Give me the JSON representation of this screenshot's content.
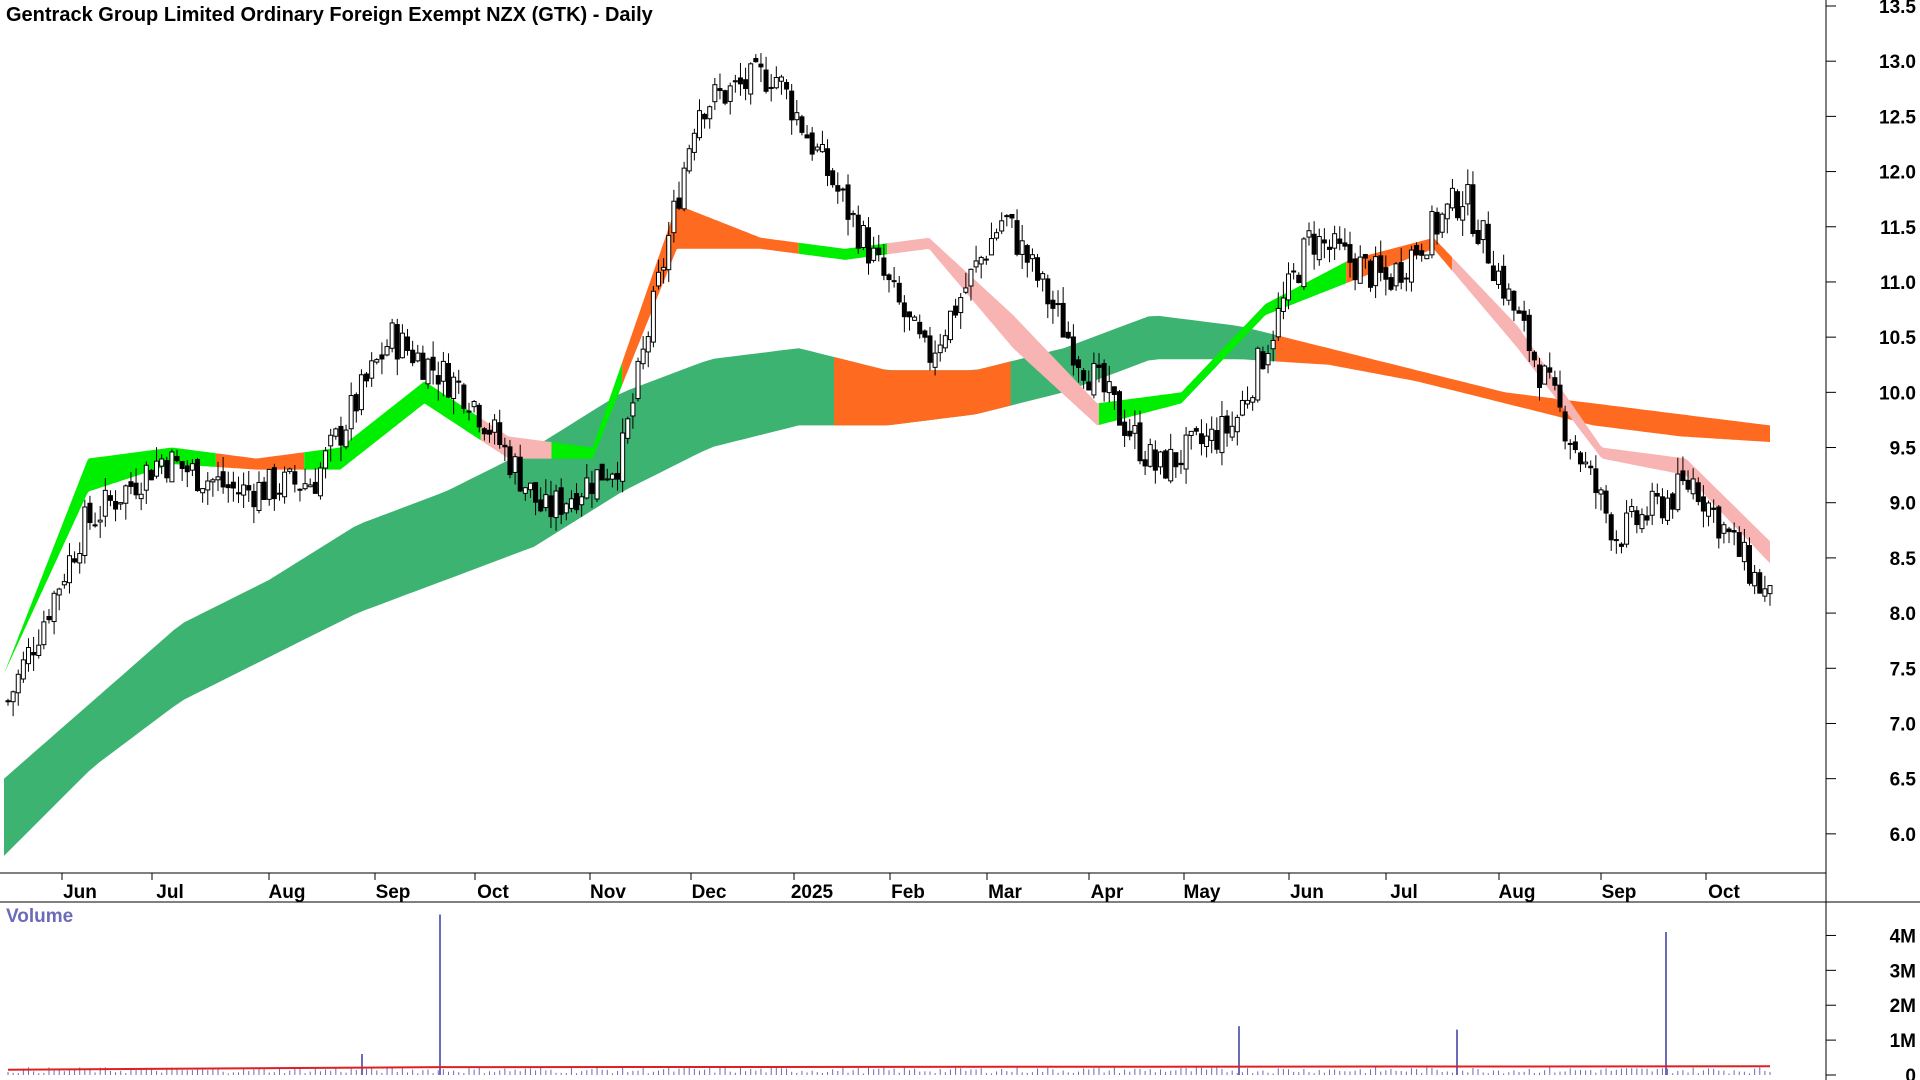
{
  "title": "Gentrack Group Limited Ordinary Foreign Exempt NZX (GTK) - Daily",
  "volume_title": "Volume",
  "colors": {
    "candle": "#000000",
    "long_band": "#3cb371",
    "long_band_bear": "#ff6a21",
    "short_band_bull": "#00ee00",
    "short_band_bear": "#ff6a21",
    "short_band_weak": "#f8b3b3",
    "volume_bar": "#6b6bb8",
    "volume_ma": "#e02020"
  },
  "chart_data": [
    {
      "type": "candlestick",
      "ylim": [
        5.6,
        13.5
      ],
      "price_ticks": [
        "6.0",
        "6.5",
        "7.0",
        "7.5",
        "8.0",
        "8.5",
        "9.0",
        "9.5",
        "10.0",
        "10.5",
        "11.0",
        "11.5",
        "12.0",
        "12.5",
        "13.0",
        "13.5"
      ],
      "x_ticks": [
        "Jun",
        "Jul",
        "Aug",
        "Sep",
        "Oct",
        "Nov",
        "Dec",
        "2025",
        "Feb",
        "Mar",
        "Apr",
        "May",
        "Jun",
        "Jul",
        "Aug",
        "Sep",
        "Oct"
      ],
      "close_path": [
        [
          "late May 2024",
          7.2
        ],
        [
          "Jun 2024",
          8.8
        ],
        [
          "Jul 2024",
          9.4
        ],
        [
          "Aug 2024",
          9.1
        ],
        [
          "Sep 2024",
          9.2
        ],
        [
          "early Oct 2024",
          10.5
        ],
        [
          "Oct 2024",
          10.0
        ],
        [
          "early Nov 2024",
          8.9
        ],
        [
          "Nov 2024",
          9.4
        ],
        [
          "late Nov 2024",
          12.6
        ],
        [
          "early Dec 2024",
          12.9
        ],
        [
          "Dec 2024",
          11.6
        ],
        [
          "Jan 2025",
          10.3
        ],
        [
          "Feb 2025",
          11.6
        ],
        [
          "late Feb 2025",
          10.3
        ],
        [
          "Mar 2025",
          9.3
        ],
        [
          "Apr 2025",
          9.7
        ],
        [
          "May 2025",
          11.4
        ],
        [
          "Jun 2025",
          11.0
        ],
        [
          "Jul 2025",
          11.8
        ],
        [
          "late Jul 2025",
          10.2
        ],
        [
          "Aug 2025",
          8.7
        ],
        [
          "Sep 2025",
          9.2
        ],
        [
          "Oct 2025",
          8.1
        ]
      ],
      "last_close": 8.05,
      "bands": [
        {
          "name": "short_upper",
          "points": [
            7.45,
            9.4,
            9.5,
            9.4,
            9.5,
            10.1,
            9.6,
            9.5,
            11.7,
            11.4,
            11.3,
            11.4,
            10.7,
            9.9,
            10.0,
            10.8,
            11.2,
            11.4,
            10.6,
            9.5,
            9.4,
            8.65
          ]
        },
        {
          "name": "short_lower",
          "points": [
            7.45,
            9.1,
            9.35,
            9.3,
            9.3,
            9.9,
            9.4,
            9.4,
            11.3,
            11.3,
            11.2,
            11.3,
            10.4,
            9.7,
            9.9,
            10.7,
            11.0,
            11.3,
            10.4,
            9.4,
            9.25,
            8.45
          ]
        },
        {
          "name": "long_upper",
          "points": [
            6.5,
            7.2,
            7.9,
            8.3,
            8.8,
            9.1,
            9.5,
            10.0,
            10.3,
            10.4,
            10.2,
            10.2,
            10.4,
            10.7,
            10.6,
            10.4,
            10.2,
            10.0,
            9.9,
            9.8,
            9.7
          ]
        },
        {
          "name": "long_lower",
          "points": [
            5.8,
            6.6,
            7.2,
            7.6,
            8.0,
            8.3,
            8.6,
            9.1,
            9.5,
            9.7,
            9.7,
            9.8,
            10.0,
            10.3,
            10.3
          ]
        }
      ]
    },
    {
      "type": "bar",
      "name": "Volume",
      "ylim": [
        0,
        4500000
      ],
      "volume_ticks": [
        "0",
        "1M",
        "2M",
        "3M",
        "4M"
      ],
      "spikes": [
        {
          "when": "early Nov 2024",
          "value": 4600000
        },
        {
          "when": "Sep 2025",
          "value": 4100000
        },
        {
          "when": "May 2025",
          "value": 1400000
        },
        {
          "when": "Jul 2025",
          "value": 1300000
        },
        {
          "when": "Oct 2024",
          "value": 600000
        }
      ],
      "baseline_value": 150000,
      "ma_value": 250000
    }
  ]
}
